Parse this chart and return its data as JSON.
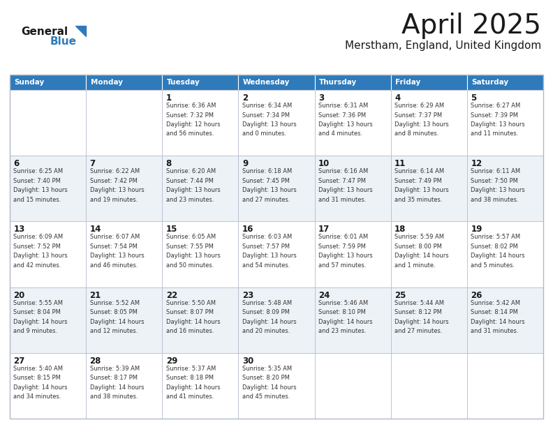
{
  "title": "April 2025",
  "subtitle": "Merstham, England, United Kingdom",
  "header_color": "#2e7aba",
  "header_text_color": "#ffffff",
  "border_color": "#b0b8c8",
  "day_headers": [
    "Sunday",
    "Monday",
    "Tuesday",
    "Wednesday",
    "Thursday",
    "Friday",
    "Saturday"
  ],
  "title_color": "#1a1a1a",
  "subtitle_color": "#1a1a1a",
  "day_number_color": "#1a1a1a",
  "cell_text_color": "#333333",
  "logo_general_color": "#1a1a1a",
  "logo_blue_color": "#2e7aba",
  "row_colors": [
    "#ffffff",
    "#edf2f7"
  ],
  "weeks": [
    [
      {
        "day": "",
        "text": ""
      },
      {
        "day": "",
        "text": ""
      },
      {
        "day": "1",
        "text": "Sunrise: 6:36 AM\nSunset: 7:32 PM\nDaylight: 12 hours\nand 56 minutes."
      },
      {
        "day": "2",
        "text": "Sunrise: 6:34 AM\nSunset: 7:34 PM\nDaylight: 13 hours\nand 0 minutes."
      },
      {
        "day": "3",
        "text": "Sunrise: 6:31 AM\nSunset: 7:36 PM\nDaylight: 13 hours\nand 4 minutes."
      },
      {
        "day": "4",
        "text": "Sunrise: 6:29 AM\nSunset: 7:37 PM\nDaylight: 13 hours\nand 8 minutes."
      },
      {
        "day": "5",
        "text": "Sunrise: 6:27 AM\nSunset: 7:39 PM\nDaylight: 13 hours\nand 11 minutes."
      }
    ],
    [
      {
        "day": "6",
        "text": "Sunrise: 6:25 AM\nSunset: 7:40 PM\nDaylight: 13 hours\nand 15 minutes."
      },
      {
        "day": "7",
        "text": "Sunrise: 6:22 AM\nSunset: 7:42 PM\nDaylight: 13 hours\nand 19 minutes."
      },
      {
        "day": "8",
        "text": "Sunrise: 6:20 AM\nSunset: 7:44 PM\nDaylight: 13 hours\nand 23 minutes."
      },
      {
        "day": "9",
        "text": "Sunrise: 6:18 AM\nSunset: 7:45 PM\nDaylight: 13 hours\nand 27 minutes."
      },
      {
        "day": "10",
        "text": "Sunrise: 6:16 AM\nSunset: 7:47 PM\nDaylight: 13 hours\nand 31 minutes."
      },
      {
        "day": "11",
        "text": "Sunrise: 6:14 AM\nSunset: 7:49 PM\nDaylight: 13 hours\nand 35 minutes."
      },
      {
        "day": "12",
        "text": "Sunrise: 6:11 AM\nSunset: 7:50 PM\nDaylight: 13 hours\nand 38 minutes."
      }
    ],
    [
      {
        "day": "13",
        "text": "Sunrise: 6:09 AM\nSunset: 7:52 PM\nDaylight: 13 hours\nand 42 minutes."
      },
      {
        "day": "14",
        "text": "Sunrise: 6:07 AM\nSunset: 7:54 PM\nDaylight: 13 hours\nand 46 minutes."
      },
      {
        "day": "15",
        "text": "Sunrise: 6:05 AM\nSunset: 7:55 PM\nDaylight: 13 hours\nand 50 minutes."
      },
      {
        "day": "16",
        "text": "Sunrise: 6:03 AM\nSunset: 7:57 PM\nDaylight: 13 hours\nand 54 minutes."
      },
      {
        "day": "17",
        "text": "Sunrise: 6:01 AM\nSunset: 7:59 PM\nDaylight: 13 hours\nand 57 minutes."
      },
      {
        "day": "18",
        "text": "Sunrise: 5:59 AM\nSunset: 8:00 PM\nDaylight: 14 hours\nand 1 minute."
      },
      {
        "day": "19",
        "text": "Sunrise: 5:57 AM\nSunset: 8:02 PM\nDaylight: 14 hours\nand 5 minutes."
      }
    ],
    [
      {
        "day": "20",
        "text": "Sunrise: 5:55 AM\nSunset: 8:04 PM\nDaylight: 14 hours\nand 9 minutes."
      },
      {
        "day": "21",
        "text": "Sunrise: 5:52 AM\nSunset: 8:05 PM\nDaylight: 14 hours\nand 12 minutes."
      },
      {
        "day": "22",
        "text": "Sunrise: 5:50 AM\nSunset: 8:07 PM\nDaylight: 14 hours\nand 16 minutes."
      },
      {
        "day": "23",
        "text": "Sunrise: 5:48 AM\nSunset: 8:09 PM\nDaylight: 14 hours\nand 20 minutes."
      },
      {
        "day": "24",
        "text": "Sunrise: 5:46 AM\nSunset: 8:10 PM\nDaylight: 14 hours\nand 23 minutes."
      },
      {
        "day": "25",
        "text": "Sunrise: 5:44 AM\nSunset: 8:12 PM\nDaylight: 14 hours\nand 27 minutes."
      },
      {
        "day": "26",
        "text": "Sunrise: 5:42 AM\nSunset: 8:14 PM\nDaylight: 14 hours\nand 31 minutes."
      }
    ],
    [
      {
        "day": "27",
        "text": "Sunrise: 5:40 AM\nSunset: 8:15 PM\nDaylight: 14 hours\nand 34 minutes."
      },
      {
        "day": "28",
        "text": "Sunrise: 5:39 AM\nSunset: 8:17 PM\nDaylight: 14 hours\nand 38 minutes."
      },
      {
        "day": "29",
        "text": "Sunrise: 5:37 AM\nSunset: 8:18 PM\nDaylight: 14 hours\nand 41 minutes."
      },
      {
        "day": "30",
        "text": "Sunrise: 5:35 AM\nSunset: 8:20 PM\nDaylight: 14 hours\nand 45 minutes."
      },
      {
        "day": "",
        "text": ""
      },
      {
        "day": "",
        "text": ""
      },
      {
        "day": "",
        "text": ""
      }
    ]
  ]
}
